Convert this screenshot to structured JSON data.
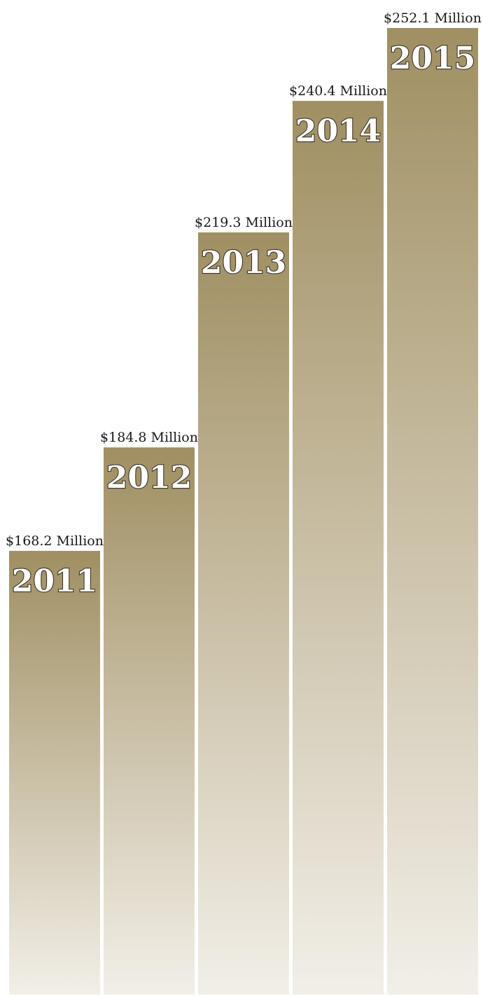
{
  "chart_data": {
    "type": "bar",
    "title": "",
    "xlabel": "",
    "ylabel": "",
    "categories": [
      "2011",
      "2012",
      "2013",
      "2014",
      "2015"
    ],
    "values": [
      168.2,
      184.8,
      219.3,
      240.4,
      252.1
    ],
    "value_labels": [
      "$168.2 Million",
      "$184.8 Million",
      "$219.3 Million",
      "$240.4 Million",
      "$252.1 Million"
    ],
    "unit": "Million",
    "ylim": [
      97,
      252.1
    ],
    "grid": false,
    "legend": "none",
    "colors": {
      "bar_top": "#a08f62",
      "bar_bottom": "#f2efe8",
      "year_text": "#ffffff",
      "year_outline": "#3b352a",
      "value_text": "#1c1a16"
    }
  }
}
